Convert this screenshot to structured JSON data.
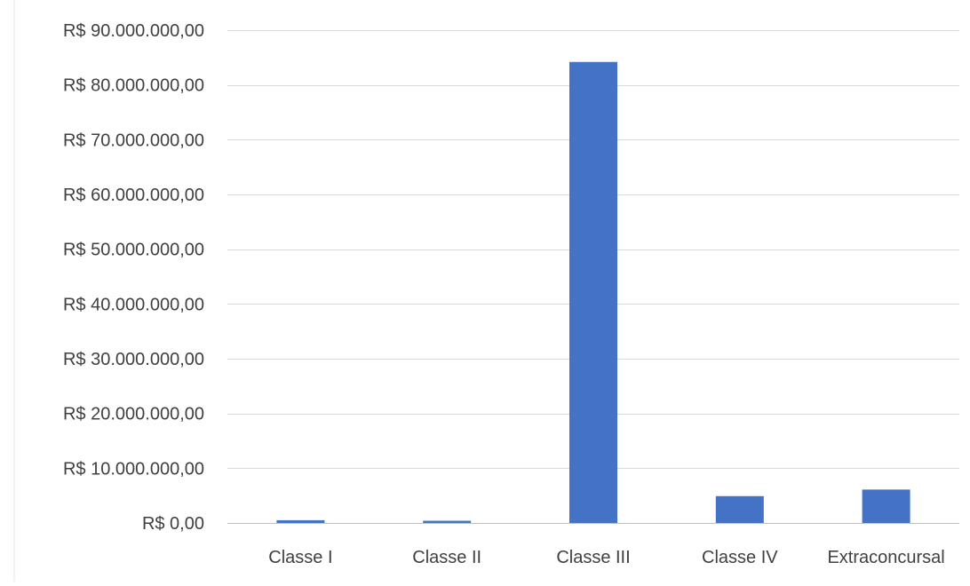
{
  "chart_data": {
    "type": "bar",
    "title": "",
    "xlabel": "",
    "ylabel": "",
    "categories": [
      "Classe I",
      "Classe II",
      "Classe III",
      "Classe IV",
      "Extraconcursal"
    ],
    "series": [
      {
        "values": [
          500000,
          400000,
          84200000,
          4900000,
          6100000
        ]
      }
    ],
    "ylim": [
      0,
      90000000
    ],
    "yticks": [
      0,
      10000000,
      20000000,
      30000000,
      40000000,
      50000000,
      60000000,
      70000000,
      80000000,
      90000000
    ],
    "ytick_labels": [
      "R$ 0,00",
      "R$ 10.000.000,00",
      "R$ 20.000.000,00",
      "R$ 30.000.000,00",
      "R$ 40.000.000,00",
      "R$ 50.000.000,00",
      "R$ 60.000.000,00",
      "R$ 70.000.000,00",
      "R$ 80.000.000,00",
      "R$ 90.000.000,00"
    ],
    "grid": true,
    "legend": "none",
    "bar_color": "#4472c4"
  }
}
